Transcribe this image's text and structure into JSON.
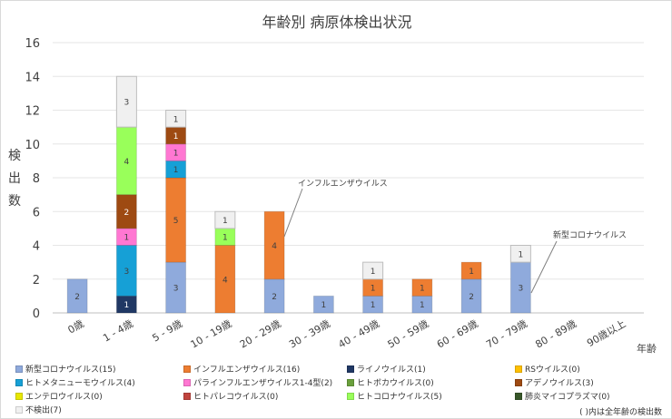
{
  "chart_data": {
    "type": "bar",
    "stacked": true,
    "title": "年齢別 病原体検出状況",
    "ylabel": "検出数",
    "xlabel": "年齢",
    "ylim": [
      0,
      16
    ],
    "yticks": [
      0,
      2,
      4,
      6,
      8,
      10,
      12,
      14,
      16
    ],
    "grid": true,
    "legend_position": "bottom",
    "categories": [
      "0歳",
      "1 - 4歳",
      "5 - 9歳",
      "10 - 19歳",
      "20 - 29歳",
      "30 - 39歳",
      "40 - 49歳",
      "50 - 59歳",
      "60 - 69歳",
      "70 - 79歳",
      "80 - 89歳",
      "90歳以上"
    ],
    "series": [
      {
        "name": "新型コロナウイルス(15)",
        "color": "#8faadc",
        "values": [
          2,
          0,
          3,
          0,
          2,
          1,
          1,
          1,
          2,
          3,
          0,
          0
        ]
      },
      {
        "name": "インフルエンザウイルス(16)",
        "color": "#ed7d31",
        "values": [
          0,
          0,
          5,
          4,
          4,
          0,
          1,
          1,
          1,
          0,
          0,
          0
        ]
      },
      {
        "name": "ライノウイルス(1)",
        "color": "#203864",
        "values": [
          0,
          1,
          0,
          0,
          0,
          0,
          0,
          0,
          0,
          0,
          0,
          0
        ]
      },
      {
        "name": "RSウイルス(0)",
        "color": "#ffc000",
        "values": [
          0,
          0,
          0,
          0,
          0,
          0,
          0,
          0,
          0,
          0,
          0,
          0
        ]
      },
      {
        "name": "ヒトメタニューモウイルス(4)",
        "color": "#16a0d6",
        "values": [
          0,
          3,
          1,
          0,
          0,
          0,
          0,
          0,
          0,
          0,
          0,
          0
        ]
      },
      {
        "name": "パラインフルエンザウイルス1-4型(2)",
        "color": "#ff77d2",
        "values": [
          0,
          1,
          1,
          0,
          0,
          0,
          0,
          0,
          0,
          0,
          0,
          0
        ]
      },
      {
        "name": "ヒトボカウイルス(0)",
        "color": "#6aa03c",
        "values": [
          0,
          0,
          0,
          0,
          0,
          0,
          0,
          0,
          0,
          0,
          0,
          0
        ]
      },
      {
        "name": "アデノウイルス(3)",
        "color": "#9e4a12",
        "values": [
          0,
          2,
          1,
          0,
          0,
          0,
          0,
          0,
          0,
          0,
          0,
          0
        ]
      },
      {
        "name": "エンテロウイルス(0)",
        "color": "#e8e800",
        "values": [
          0,
          0,
          0,
          0,
          0,
          0,
          0,
          0,
          0,
          0,
          0,
          0
        ]
      },
      {
        "name": "ヒトパレコウイルス(0)",
        "color": "#c0443e",
        "values": [
          0,
          0,
          0,
          0,
          0,
          0,
          0,
          0,
          0,
          0,
          0,
          0
        ]
      },
      {
        "name": "ヒトコロナウイルス(5)",
        "color": "#99ff5a",
        "values": [
          0,
          4,
          0,
          1,
          0,
          0,
          0,
          0,
          0,
          0,
          0,
          0
        ]
      },
      {
        "name": "肺炎マイコプラズマ(0)",
        "color": "#38572a",
        "values": [
          0,
          0,
          0,
          0,
          0,
          0,
          0,
          0,
          0,
          0,
          0,
          0
        ]
      },
      {
        "name": "不検出(7)",
        "color": "#f0f0f0",
        "values": [
          0,
          3,
          1,
          1,
          0,
          0,
          1,
          0,
          0,
          1,
          0,
          0
        ]
      }
    ],
    "annotations": [
      {
        "text": "インフルエンザウイルス",
        "category": "20 - 29歳"
      },
      {
        "text": "新型コロナウイルス",
        "category": "70 - 79歳"
      }
    ],
    "note": "( )内は全年齢の検出数"
  }
}
